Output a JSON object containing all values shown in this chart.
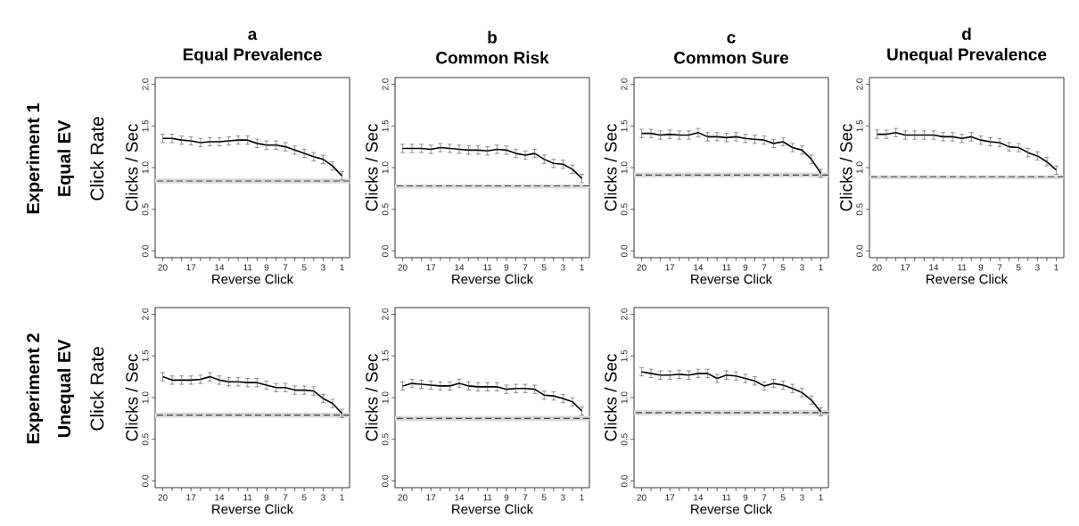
{
  "chart_data": [
    {
      "type": "line",
      "title": "a",
      "subtitle": "Equal Prevalence",
      "xlabel": "Reverse Click",
      "ylabel": "Clicks / Sec",
      "annotations": [
        "Experiment 1",
        "Equal EV",
        "Click Rate"
      ],
      "color": "#000000",
      "line_style": "solid",
      "x": [
        20,
        19,
        18,
        17,
        16,
        15,
        14,
        13,
        12,
        11,
        10,
        9,
        8,
        7,
        6,
        5,
        4,
        3,
        2,
        1
      ],
      "values": [
        1.35,
        1.35,
        1.33,
        1.32,
        1.3,
        1.31,
        1.31,
        1.32,
        1.33,
        1.33,
        1.29,
        1.27,
        1.27,
        1.25,
        1.21,
        1.17,
        1.13,
        1.1,
        1.02,
        0.9
      ],
      "errors": [
        0.05,
        0.05,
        0.05,
        0.05,
        0.05,
        0.05,
        0.05,
        0.05,
        0.05,
        0.05,
        0.05,
        0.05,
        0.05,
        0.05,
        0.05,
        0.05,
        0.05,
        0.05,
        0.05,
        0.05
      ],
      "ref_lines": [
        {
          "axis": "y",
          "value": 0.84,
          "line_style": "dashed",
          "color": "#404040"
        }
      ],
      "bands": [
        {
          "axis": "y",
          "from": 0.81,
          "to": 0.87,
          "color": "#d9d9d9"
        }
      ],
      "xlim": [
        20.8,
        0.2
      ],
      "ylim": [
        -0.08,
        2.08
      ],
      "xticks": [
        20,
        {
          "value": 19,
          "label": null
        },
        {
          "value": 18,
          "label": null
        },
        17,
        {
          "value": 16,
          "label": null
        },
        {
          "value": 15,
          "label": null
        },
        14,
        {
          "value": 13,
          "label": null
        },
        {
          "value": 12,
          "label": null
        },
        11,
        {
          "value": 10,
          "label": null
        },
        9,
        {
          "value": 8,
          "label": null
        },
        7,
        {
          "value": 6,
          "label": null
        },
        5,
        {
          "value": 4,
          "label": null
        },
        3,
        {
          "value": 2,
          "label": null
        },
        1
      ],
      "yticks": [
        {
          "value": 0,
          "label": "0.0"
        },
        {
          "value": 0.5,
          "label": "0.5"
        },
        {
          "value": 1,
          "label": "1.0"
        },
        {
          "value": 1.5,
          "label": "1.5"
        },
        {
          "value": 2,
          "label": "2.0"
        }
      ]
    },
    {
      "type": "line",
      "title": "b",
      "subtitle": "Common Risk",
      "xlabel": "Reverse Click",
      "ylabel": "Clicks / Sec",
      "color": "#000000",
      "line_style": "solid",
      "x": [
        20,
        19,
        18,
        17,
        16,
        15,
        14,
        13,
        12,
        11,
        10,
        9,
        8,
        7,
        6,
        5,
        4,
        3,
        2,
        1
      ],
      "values": [
        1.23,
        1.23,
        1.23,
        1.22,
        1.24,
        1.23,
        1.22,
        1.21,
        1.21,
        1.2,
        1.22,
        1.21,
        1.17,
        1.15,
        1.17,
        1.1,
        1.05,
        1.04,
        0.98,
        0.87
      ],
      "errors": [
        0.05,
        0.05,
        0.05,
        0.05,
        0.05,
        0.05,
        0.05,
        0.05,
        0.05,
        0.05,
        0.05,
        0.05,
        0.05,
        0.05,
        0.05,
        0.05,
        0.05,
        0.05,
        0.05,
        0.05
      ],
      "ref_lines": [
        {
          "axis": "y",
          "value": 0.78,
          "line_style": "dashed",
          "color": "#404040"
        }
      ],
      "bands": [
        {
          "axis": "y",
          "from": 0.75,
          "to": 0.8,
          "color": "#d9d9d9"
        }
      ],
      "xlim": [
        20.8,
        0.2
      ],
      "ylim": [
        -0.08,
        2.08
      ],
      "xticks": [
        20,
        {
          "value": 19,
          "label": null
        },
        {
          "value": 18,
          "label": null
        },
        17,
        {
          "value": 16,
          "label": null
        },
        {
          "value": 15,
          "label": null
        },
        14,
        {
          "value": 13,
          "label": null
        },
        {
          "value": 12,
          "label": null
        },
        11,
        {
          "value": 10,
          "label": null
        },
        9,
        {
          "value": 8,
          "label": null
        },
        7,
        {
          "value": 6,
          "label": null
        },
        5,
        {
          "value": 4,
          "label": null
        },
        3,
        {
          "value": 2,
          "label": null
        },
        1
      ],
      "yticks": [
        {
          "value": 0,
          "label": "0.0"
        },
        {
          "value": 0.5,
          "label": "0.5"
        },
        {
          "value": 1,
          "label": "1.0"
        },
        {
          "value": 1.5,
          "label": "1.5"
        },
        {
          "value": 2,
          "label": "2.0"
        }
      ]
    },
    {
      "type": "line",
      "title": "c",
      "subtitle": "Common Sure",
      "xlabel": "Reverse Click",
      "ylabel": "Clicks / Sec",
      "color": "#000000",
      "line_style": "solid",
      "x": [
        20,
        19,
        18,
        17,
        16,
        15,
        14,
        13,
        12,
        11,
        10,
        9,
        8,
        7,
        6,
        5,
        4,
        3,
        2,
        1
      ],
      "values": [
        1.41,
        1.41,
        1.39,
        1.4,
        1.39,
        1.39,
        1.42,
        1.37,
        1.37,
        1.36,
        1.37,
        1.35,
        1.34,
        1.33,
        1.29,
        1.31,
        1.24,
        1.21,
        1.1,
        0.93
      ],
      "errors": [
        0.05,
        0.05,
        0.05,
        0.05,
        0.05,
        0.05,
        0.05,
        0.05,
        0.05,
        0.05,
        0.05,
        0.05,
        0.05,
        0.05,
        0.05,
        0.05,
        0.05,
        0.05,
        0.05,
        0.05
      ],
      "ref_lines": [
        {
          "axis": "y",
          "value": 0.91,
          "line_style": "dashed",
          "color": "#404040"
        }
      ],
      "bands": [
        {
          "axis": "y",
          "from": 0.88,
          "to": 0.94,
          "color": "#d9d9d9"
        }
      ],
      "xlim": [
        20.8,
        0.2
      ],
      "ylim": [
        -0.08,
        2.08
      ],
      "xticks": [
        20,
        {
          "value": 19,
          "label": null
        },
        {
          "value": 18,
          "label": null
        },
        17,
        {
          "value": 16,
          "label": null
        },
        {
          "value": 15,
          "label": null
        },
        14,
        {
          "value": 13,
          "label": null
        },
        {
          "value": 12,
          "label": null
        },
        11,
        {
          "value": 10,
          "label": null
        },
        9,
        {
          "value": 8,
          "label": null
        },
        7,
        {
          "value": 6,
          "label": null
        },
        5,
        {
          "value": 4,
          "label": null
        },
        3,
        {
          "value": 2,
          "label": null
        },
        1
      ],
      "yticks": [
        {
          "value": 0,
          "label": "0.0"
        },
        {
          "value": 0.5,
          "label": "0.5"
        },
        {
          "value": 1,
          "label": "1.0"
        },
        {
          "value": 1.5,
          "label": "1.5"
        },
        {
          "value": 2,
          "label": "2.0"
        }
      ]
    },
    {
      "type": "line",
      "title": "d",
      "subtitle": "Unequal Prevalence",
      "xlabel": "Reverse Click",
      "ylabel": "Clicks / Sec",
      "color": "#000000",
      "line_style": "solid",
      "x": [
        20,
        19,
        18,
        17,
        16,
        15,
        14,
        13,
        12,
        11,
        10,
        9,
        8,
        7,
        6,
        5,
        4,
        3,
        2,
        1
      ],
      "values": [
        1.4,
        1.4,
        1.42,
        1.39,
        1.39,
        1.39,
        1.39,
        1.37,
        1.37,
        1.35,
        1.37,
        1.33,
        1.31,
        1.3,
        1.25,
        1.24,
        1.18,
        1.14,
        1.07,
        0.97
      ],
      "errors": [
        0.05,
        0.05,
        0.05,
        0.05,
        0.05,
        0.05,
        0.05,
        0.05,
        0.05,
        0.05,
        0.05,
        0.05,
        0.05,
        0.05,
        0.05,
        0.05,
        0.05,
        0.05,
        0.05,
        0.05
      ],
      "ref_lines": [
        {
          "axis": "y",
          "value": 0.89,
          "line_style": "dashed",
          "color": "#404040"
        }
      ],
      "bands": [
        {
          "axis": "y",
          "from": 0.86,
          "to": 0.91,
          "color": "#d9d9d9"
        }
      ],
      "xlim": [
        20.8,
        0.2
      ],
      "ylim": [
        -0.08,
        2.08
      ],
      "xticks": [
        20,
        {
          "value": 19,
          "label": null
        },
        {
          "value": 18,
          "label": null
        },
        17,
        {
          "value": 16,
          "label": null
        },
        {
          "value": 15,
          "label": null
        },
        14,
        {
          "value": 13,
          "label": null
        },
        {
          "value": 12,
          "label": null
        },
        11,
        {
          "value": 10,
          "label": null
        },
        9,
        {
          "value": 8,
          "label": null
        },
        7,
        {
          "value": 6,
          "label": null
        },
        5,
        {
          "value": 4,
          "label": null
        },
        3,
        {
          "value": 2,
          "label": null
        },
        1
      ],
      "yticks": [
        {
          "value": 0,
          "label": "0.0"
        },
        {
          "value": 0.5,
          "label": "0.5"
        },
        {
          "value": 1,
          "label": "1.0"
        },
        {
          "value": 1.5,
          "label": "1.5"
        },
        {
          "value": 2,
          "label": "2.0"
        }
      ]
    },
    {
      "type": "line",
      "xlabel": "Reverse Click",
      "ylabel": "Clicks / Sec",
      "annotations": [
        "Experiment 2",
        "Unequal EV",
        "Click Rate"
      ],
      "color": "#000000",
      "line_style": "solid",
      "x": [
        20,
        19,
        18,
        17,
        16,
        15,
        14,
        13,
        12,
        11,
        10,
        9,
        8,
        7,
        6,
        5,
        4,
        3,
        2,
        1
      ],
      "values": [
        1.25,
        1.21,
        1.21,
        1.21,
        1.22,
        1.25,
        1.21,
        1.19,
        1.19,
        1.18,
        1.18,
        1.15,
        1.12,
        1.12,
        1.09,
        1.09,
        1.08,
        0.99,
        0.93,
        0.81
      ],
      "errors": [
        0.05,
        0.05,
        0.05,
        0.05,
        0.05,
        0.05,
        0.05,
        0.05,
        0.05,
        0.05,
        0.05,
        0.05,
        0.05,
        0.05,
        0.05,
        0.05,
        0.05,
        0.05,
        0.05,
        0.05
      ],
      "ref_lines": [
        {
          "axis": "y",
          "value": 0.79,
          "line_style": "dashed",
          "color": "#404040"
        }
      ],
      "bands": [
        {
          "axis": "y",
          "from": 0.76,
          "to": 0.82,
          "color": "#d9d9d9"
        }
      ],
      "xlim": [
        20.8,
        0.2
      ],
      "ylim": [
        -0.08,
        2.08
      ],
      "xticks": [
        20,
        {
          "value": 19,
          "label": null
        },
        {
          "value": 18,
          "label": null
        },
        17,
        {
          "value": 16,
          "label": null
        },
        {
          "value": 15,
          "label": null
        },
        14,
        {
          "value": 13,
          "label": null
        },
        {
          "value": 12,
          "label": null
        },
        11,
        {
          "value": 10,
          "label": null
        },
        9,
        {
          "value": 8,
          "label": null
        },
        7,
        {
          "value": 6,
          "label": null
        },
        5,
        {
          "value": 4,
          "label": null
        },
        3,
        {
          "value": 2,
          "label": null
        },
        1
      ],
      "yticks": [
        {
          "value": 0,
          "label": "0.0"
        },
        {
          "value": 0.5,
          "label": "0.5"
        },
        {
          "value": 1,
          "label": "1.0"
        },
        {
          "value": 1.5,
          "label": "1.5"
        },
        {
          "value": 2,
          "label": "2.0"
        }
      ]
    },
    {
      "type": "line",
      "xlabel": "Reverse Click",
      "ylabel": "Clicks / Sec",
      "color": "#000000",
      "line_style": "solid",
      "x": [
        20,
        19,
        18,
        17,
        16,
        15,
        14,
        13,
        12,
        11,
        10,
        9,
        8,
        7,
        6,
        5,
        4,
        3,
        2,
        1
      ],
      "values": [
        1.14,
        1.17,
        1.16,
        1.15,
        1.14,
        1.14,
        1.17,
        1.14,
        1.13,
        1.13,
        1.13,
        1.1,
        1.11,
        1.11,
        1.1,
        1.03,
        1.02,
        0.99,
        0.95,
        0.84
      ],
      "errors": [
        0.05,
        0.05,
        0.05,
        0.05,
        0.05,
        0.05,
        0.05,
        0.05,
        0.05,
        0.05,
        0.05,
        0.05,
        0.05,
        0.05,
        0.05,
        0.05,
        0.05,
        0.05,
        0.05,
        0.05
      ],
      "ref_lines": [
        {
          "axis": "y",
          "value": 0.75,
          "line_style": "dashed",
          "color": "#404040"
        }
      ],
      "bands": [
        {
          "axis": "y",
          "from": 0.72,
          "to": 0.78,
          "color": "#d9d9d9"
        }
      ],
      "xlim": [
        20.8,
        0.2
      ],
      "ylim": [
        -0.08,
        2.08
      ],
      "xticks": [
        20,
        {
          "value": 19,
          "label": null
        },
        {
          "value": 18,
          "label": null
        },
        17,
        {
          "value": 16,
          "label": null
        },
        {
          "value": 15,
          "label": null
        },
        14,
        {
          "value": 13,
          "label": null
        },
        {
          "value": 12,
          "label": null
        },
        11,
        {
          "value": 10,
          "label": null
        },
        9,
        {
          "value": 8,
          "label": null
        },
        7,
        {
          "value": 6,
          "label": null
        },
        5,
        {
          "value": 4,
          "label": null
        },
        3,
        {
          "value": 2,
          "label": null
        },
        1
      ],
      "yticks": [
        {
          "value": 0,
          "label": "0.0"
        },
        {
          "value": 0.5,
          "label": "0.5"
        },
        {
          "value": 1,
          "label": "1.0"
        },
        {
          "value": 1.5,
          "label": "1.5"
        },
        {
          "value": 2,
          "label": "2.0"
        }
      ]
    },
    {
      "type": "line",
      "xlabel": "Reverse Click",
      "ylabel": "Clicks / Sec",
      "color": "#000000",
      "line_style": "solid",
      "x": [
        20,
        19,
        18,
        17,
        16,
        15,
        14,
        13,
        12,
        11,
        10,
        9,
        8,
        7,
        6,
        5,
        4,
        3,
        2,
        1
      ],
      "values": [
        1.31,
        1.29,
        1.27,
        1.27,
        1.28,
        1.27,
        1.29,
        1.29,
        1.23,
        1.27,
        1.26,
        1.23,
        1.2,
        1.14,
        1.17,
        1.15,
        1.11,
        1.06,
        0.97,
        0.83
      ],
      "errors": [
        0.05,
        0.05,
        0.05,
        0.05,
        0.05,
        0.05,
        0.05,
        0.05,
        0.05,
        0.05,
        0.05,
        0.05,
        0.05,
        0.05,
        0.05,
        0.05,
        0.05,
        0.05,
        0.05,
        0.05
      ],
      "ref_lines": [
        {
          "axis": "y",
          "value": 0.82,
          "line_style": "dashed",
          "color": "#404040"
        }
      ],
      "bands": [
        {
          "axis": "y",
          "from": 0.79,
          "to": 0.85,
          "color": "#d9d9d9"
        }
      ],
      "xlim": [
        20.8,
        0.2
      ],
      "ylim": [
        -0.08,
        2.08
      ],
      "xticks": [
        20,
        {
          "value": 19,
          "label": null
        },
        {
          "value": 18,
          "label": null
        },
        17,
        {
          "value": 16,
          "label": null
        },
        {
          "value": 15,
          "label": null
        },
        14,
        {
          "value": 13,
          "label": null
        },
        {
          "value": 12,
          "label": null
        },
        11,
        {
          "value": 10,
          "label": null
        },
        9,
        {
          "value": 8,
          "label": null
        },
        7,
        {
          "value": 6,
          "label": null
        },
        5,
        {
          "value": 4,
          "label": null
        },
        3,
        {
          "value": 2,
          "label": null
        },
        1
      ],
      "yticks": [
        {
          "value": 0,
          "label": "0.0"
        },
        {
          "value": 0.5,
          "label": "0.5"
        },
        {
          "value": 1,
          "label": "1.0"
        },
        {
          "value": 1.5,
          "label": "1.5"
        },
        {
          "value": 2,
          "label": "2.0"
        }
      ]
    }
  ]
}
